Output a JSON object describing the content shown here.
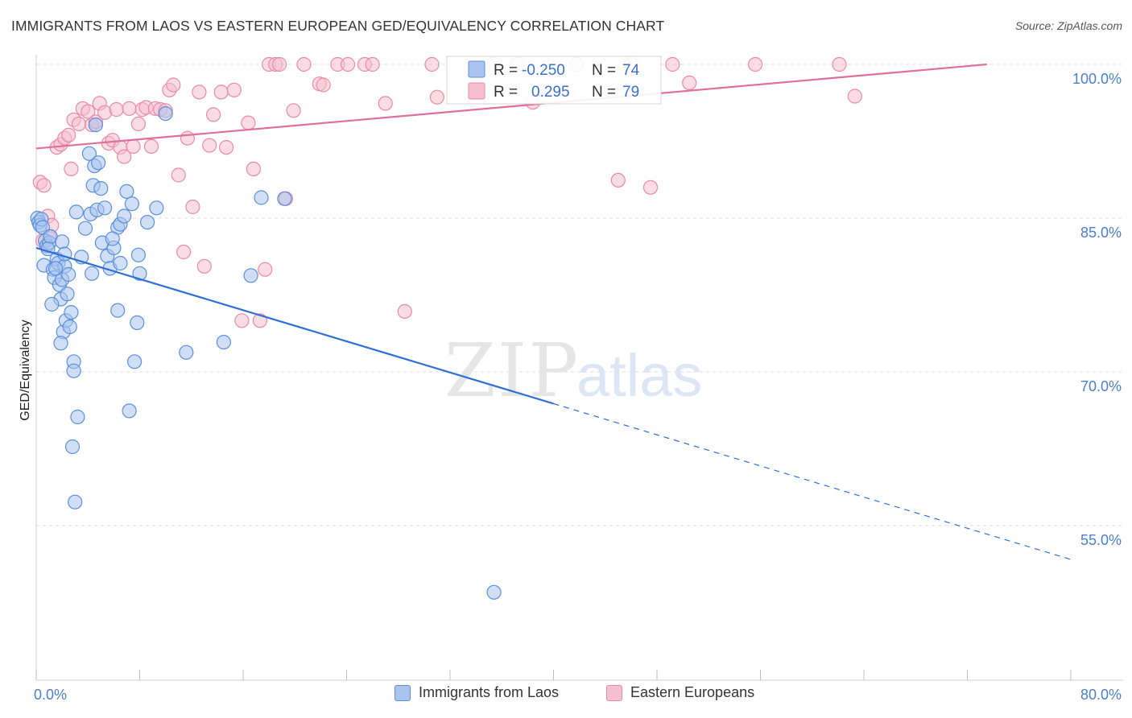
{
  "header": {
    "title": "IMMIGRANTS FROM LAOS VS EASTERN EUROPEAN GED/EQUIVALENCY CORRELATION CHART",
    "source": "Source: ZipAtlas.com"
  },
  "watermark": {
    "zip": "ZIP",
    "atlas": "atlas"
  },
  "legend": {
    "r_label": "R =",
    "n_label": "N =",
    "rows": [
      {
        "r": "-0.250",
        "n": "74"
      },
      {
        "r": "0.295",
        "n": "79"
      }
    ]
  },
  "bottom_legend": [
    "Immigrants from Laos",
    "Eastern Europeans"
  ],
  "colors": {
    "blue_fill": "#a9c5ef",
    "blue_stroke": "#5b8fdc",
    "blue_line": "#2f6fd6",
    "pink_fill": "#f6bfd0",
    "pink_stroke": "#e98aa8",
    "pink_line": "#e0709a",
    "tick_text": "#4a7fd0"
  },
  "chart_data": {
    "type": "scatter",
    "title": "IMMIGRANTS FROM LAOS VS EASTERN EUROPEAN GED/EQUIVALENCY CORRELATION CHART",
    "xlabel": "",
    "ylabel": "GED/Equivalency",
    "xlim": [
      0,
      80
    ],
    "ylim": [
      41.5,
      101.5
    ],
    "x_tick_labels": [
      "0.0%",
      "80.0%"
    ],
    "y_ticks": [
      100,
      85,
      70,
      55
    ],
    "y_tick_labels": [
      "100.0%",
      "85.0%",
      "70.0%",
      "55.0%"
    ],
    "series": [
      {
        "name": "Immigrants from Laos",
        "color": "blue",
        "R": -0.25,
        "N": 74,
        "trend": {
          "x0": 0,
          "y0": 82.1,
          "x1": 40,
          "y1": 66.9,
          "dash_to_x": 80,
          "dash_to_y": 51.7
        },
        "points": [
          [
            0.1,
            85.0
          ],
          [
            0.2,
            84.6
          ],
          [
            0.3,
            84.3
          ],
          [
            0.4,
            84.9
          ],
          [
            0.5,
            84.1
          ],
          [
            0.7,
            82.8
          ],
          [
            0.8,
            82.3
          ],
          [
            1.0,
            82.6
          ],
          [
            1.1,
            83.2
          ],
          [
            0.6,
            80.4
          ],
          [
            1.3,
            80.0
          ],
          [
            1.4,
            79.2
          ],
          [
            1.6,
            81.0
          ],
          [
            1.7,
            80.6
          ],
          [
            1.8,
            78.5
          ],
          [
            1.9,
            77.1
          ],
          [
            2.0,
            79.0
          ],
          [
            2.2,
            80.3
          ],
          [
            2.4,
            77.6
          ],
          [
            2.5,
            79.5
          ],
          [
            1.2,
            76.6
          ],
          [
            2.1,
            73.9
          ],
          [
            2.3,
            75.0
          ],
          [
            2.6,
            74.4
          ],
          [
            2.7,
            75.8
          ],
          [
            1.9,
            72.8
          ],
          [
            2.9,
            71.0
          ],
          [
            2.9,
            70.1
          ],
          [
            3.2,
            65.6
          ],
          [
            2.8,
            62.7
          ],
          [
            3.0,
            57.3
          ],
          [
            4.1,
            91.3
          ],
          [
            4.6,
            94.1
          ],
          [
            4.5,
            90.1
          ],
          [
            4.8,
            90.4
          ],
          [
            4.4,
            88.2
          ],
          [
            5.0,
            87.9
          ],
          [
            4.2,
            85.4
          ],
          [
            4.7,
            85.8
          ],
          [
            5.3,
            86.0
          ],
          [
            5.1,
            82.6
          ],
          [
            5.5,
            81.3
          ],
          [
            5.7,
            80.1
          ],
          [
            6.0,
            82.1
          ],
          [
            6.3,
            84.1
          ],
          [
            6.5,
            84.4
          ],
          [
            6.8,
            85.2
          ],
          [
            7.0,
            87.6
          ],
          [
            7.4,
            86.4
          ],
          [
            6.5,
            80.6
          ],
          [
            7.9,
            81.4
          ],
          [
            8.0,
            79.6
          ],
          [
            6.3,
            76.0
          ],
          [
            7.8,
            74.8
          ],
          [
            7.6,
            71.0
          ],
          [
            9.3,
            86.0
          ],
          [
            10.0,
            95.2
          ],
          [
            11.6,
            71.9
          ],
          [
            14.5,
            72.9
          ],
          [
            16.6,
            79.4
          ],
          [
            17.4,
            87.0
          ],
          [
            19.2,
            86.9
          ],
          [
            7.2,
            66.2
          ],
          [
            35.4,
            48.5
          ],
          [
            2.0,
            82.7
          ],
          [
            3.5,
            81.2
          ],
          [
            4.3,
            79.6
          ],
          [
            3.8,
            84.0
          ],
          [
            0.9,
            82.0
          ],
          [
            1.5,
            80.1
          ],
          [
            5.9,
            83.0
          ],
          [
            3.1,
            85.6
          ],
          [
            2.2,
            81.5
          ],
          [
            8.6,
            84.6
          ]
        ]
      },
      {
        "name": "Eastern Europeans",
        "color": "pink",
        "R": 0.295,
        "N": 79,
        "trend": {
          "x0": 0,
          "y0": 91.8,
          "x1": 73.5,
          "y1": 100.0
        },
        "points": [
          [
            0.3,
            88.5
          ],
          [
            0.6,
            88.2
          ],
          [
            0.9,
            85.2
          ],
          [
            1.2,
            84.3
          ],
          [
            1.6,
            91.9
          ],
          [
            1.9,
            92.2
          ],
          [
            2.2,
            92.8
          ],
          [
            2.5,
            93.1
          ],
          [
            2.9,
            94.6
          ],
          [
            3.3,
            94.2
          ],
          [
            3.6,
            95.7
          ],
          [
            4.0,
            95.4
          ],
          [
            4.3,
            94.1
          ],
          [
            4.6,
            94.4
          ],
          [
            4.9,
            96.2
          ],
          [
            5.3,
            95.3
          ],
          [
            5.6,
            92.3
          ],
          [
            5.9,
            92.6
          ],
          [
            6.2,
            95.6
          ],
          [
            6.5,
            91.9
          ],
          [
            6.8,
            91.0
          ],
          [
            7.2,
            95.7
          ],
          [
            7.5,
            92.0
          ],
          [
            7.9,
            94.2
          ],
          [
            8.2,
            95.6
          ],
          [
            8.5,
            95.8
          ],
          [
            8.9,
            92.0
          ],
          [
            9.2,
            95.7
          ],
          [
            9.6,
            95.6
          ],
          [
            10.0,
            95.5
          ],
          [
            10.3,
            97.5
          ],
          [
            10.6,
            98.0
          ],
          [
            11.0,
            89.2
          ],
          [
            11.4,
            81.7
          ],
          [
            11.7,
            92.8
          ],
          [
            12.1,
            86.1
          ],
          [
            12.6,
            97.3
          ],
          [
            13.0,
            80.3
          ],
          [
            13.4,
            92.1
          ],
          [
            13.7,
            95.1
          ],
          [
            14.3,
            97.3
          ],
          [
            14.7,
            91.9
          ],
          [
            15.3,
            97.5
          ],
          [
            15.9,
            75.0
          ],
          [
            16.4,
            94.3
          ],
          [
            16.8,
            89.8
          ],
          [
            17.3,
            75.0
          ],
          [
            17.7,
            80.0
          ],
          [
            18.0,
            100.0
          ],
          [
            18.5,
            100.0
          ],
          [
            18.8,
            100.0
          ],
          [
            19.3,
            86.9
          ],
          [
            19.9,
            95.5
          ],
          [
            20.7,
            100.0
          ],
          [
            21.9,
            98.1
          ],
          [
            22.2,
            98.0
          ],
          [
            23.3,
            100.0
          ],
          [
            24.1,
            100.0
          ],
          [
            25.4,
            100.0
          ],
          [
            26.0,
            100.0
          ],
          [
            27.0,
            96.2
          ],
          [
            28.5,
            75.9
          ],
          [
            30.6,
            100.0
          ],
          [
            31.0,
            96.8
          ],
          [
            35.4,
            100.0
          ],
          [
            37.2,
            100.0
          ],
          [
            38.4,
            96.3
          ],
          [
            41.8,
            100.0
          ],
          [
            45.0,
            88.7
          ],
          [
            46.0,
            100.0
          ],
          [
            47.5,
            88.0
          ],
          [
            49.2,
            100.0
          ],
          [
            50.5,
            98.2
          ],
          [
            55.6,
            100.0
          ],
          [
            62.1,
            100.0
          ],
          [
            63.3,
            96.9
          ],
          [
            1.0,
            83.2
          ],
          [
            0.5,
            82.8
          ],
          [
            2.7,
            89.8
          ]
        ]
      }
    ]
  }
}
